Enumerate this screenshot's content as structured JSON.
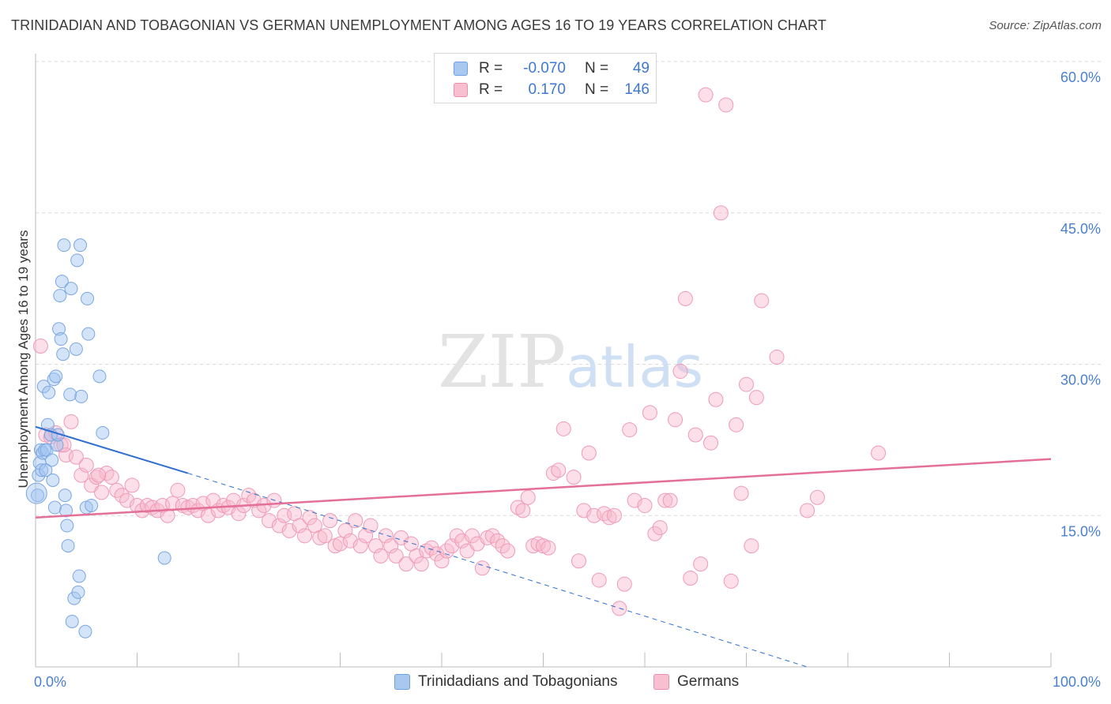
{
  "header": {
    "title": "TRINIDADIAN AND TOBAGONIAN VS GERMAN UNEMPLOYMENT AMONG AGES 16 TO 19 YEARS CORRELATION CHART",
    "source": "Source: ZipAtlas.com"
  },
  "watermark": {
    "zip": "ZIP",
    "atlas": "atlas"
  },
  "legend": {
    "rows": [
      {
        "r_label": "R =",
        "r_value": "-0.070",
        "n_label": "N =",
        "n_value": "49",
        "color": "#a9c8f0",
        "border": "#6fa0e0"
      },
      {
        "r_label": "R =",
        "r_value": "0.170",
        "n_label": "N =",
        "n_value": "146",
        "color": "#f8bfd0",
        "border": "#e890ac"
      }
    ]
  },
  "bottom_legend": {
    "series1": "Trinidadians and Tobagonians",
    "series2": "Germans"
  },
  "colors": {
    "blue_fill": "rgba(160,195,240,0.45)",
    "blue_stroke": "#7aa6e2",
    "blue_line": "#2f6fd0",
    "pink_fill": "rgba(248,185,205,0.45)",
    "pink_stroke": "#ee9ab6",
    "pink_line": "#e46f98",
    "grid": "#d9d9d9",
    "tick_text": "#4a7fd0"
  },
  "chart_data": {
    "type": "scatter",
    "title": "TRINIDADIAN AND TOBAGONIAN VS GERMAN UNEMPLOYMENT AMONG AGES 16 TO 19 YEARS CORRELATION CHART",
    "xlabel": "",
    "ylabel": "Unemployment Among Ages 16 to 19 years",
    "xlim": [
      0,
      100
    ],
    "ylim": [
      0,
      60
    ],
    "x_tick_labels": [
      "0.0%",
      "100.0%"
    ],
    "y_ticks": [
      15,
      30,
      45,
      60
    ],
    "y_tick_labels": [
      "15.0%",
      "30.0%",
      "45.0%",
      "60.0%"
    ],
    "grid": "horizontal dashed",
    "legend_position": "top-center",
    "series": [
      {
        "name": "Trinidadians and Tobagonians",
        "points": [
          [
            0.2,
            17.0
          ],
          [
            0.3,
            19.0
          ],
          [
            0.4,
            20.2
          ],
          [
            0.5,
            21.5
          ],
          [
            0.6,
            19.5
          ],
          [
            0.7,
            21.2
          ],
          [
            0.8,
            27.8
          ],
          [
            0.9,
            21.5
          ],
          [
            1.0,
            19.5
          ],
          [
            1.1,
            21.5
          ],
          [
            1.2,
            24.0
          ],
          [
            1.3,
            27.2
          ],
          [
            1.5,
            23.0
          ],
          [
            1.6,
            20.5
          ],
          [
            1.7,
            18.5
          ],
          [
            1.8,
            28.5
          ],
          [
            1.9,
            15.8
          ],
          [
            2.0,
            28.8
          ],
          [
            2.1,
            22.0
          ],
          [
            2.2,
            23.0
          ],
          [
            2.3,
            33.5
          ],
          [
            2.4,
            36.8
          ],
          [
            2.5,
            32.5
          ],
          [
            2.6,
            38.2
          ],
          [
            2.7,
            31.0
          ],
          [
            2.8,
            41.8
          ],
          [
            2.9,
            17.0
          ],
          [
            3.0,
            15.5
          ],
          [
            3.1,
            14.0
          ],
          [
            3.2,
            12.0
          ],
          [
            3.4,
            27.0
          ],
          [
            3.5,
            37.5
          ],
          [
            3.6,
            4.5
          ],
          [
            3.8,
            6.8
          ],
          [
            4.0,
            31.5
          ],
          [
            4.1,
            40.3
          ],
          [
            4.2,
            7.4
          ],
          [
            4.3,
            9.0
          ],
          [
            4.4,
            41.8
          ],
          [
            4.5,
            26.8
          ],
          [
            4.9,
            3.5
          ],
          [
            5.0,
            15.8
          ],
          [
            5.1,
            36.5
          ],
          [
            5.2,
            33.0
          ],
          [
            5.5,
            16.0
          ],
          [
            6.3,
            28.8
          ],
          [
            6.6,
            23.2
          ],
          [
            12.7,
            10.8
          ],
          [
            0.1,
            17.2
          ]
        ],
        "trend": {
          "x": [
            0,
            15
          ],
          "y": [
            23.8,
            19.2
          ],
          "dashed_extension": {
            "x": [
              15,
              76
            ],
            "y": [
              19.2,
              0.0
            ]
          }
        }
      },
      {
        "name": "Germans",
        "points": [
          [
            0.5,
            31.8
          ],
          [
            1.0,
            23.0
          ],
          [
            1.5,
            22.8
          ],
          [
            2.0,
            23.2
          ],
          [
            2.5,
            22.0
          ],
          [
            3.0,
            21.0
          ],
          [
            3.5,
            24.3
          ],
          [
            4.0,
            20.8
          ],
          [
            4.5,
            19.0
          ],
          [
            5.0,
            20.0
          ],
          [
            5.5,
            18.0
          ],
          [
            6.0,
            18.8
          ],
          [
            6.5,
            17.3
          ],
          [
            7.0,
            19.2
          ],
          [
            7.5,
            18.8
          ],
          [
            8.0,
            17.5
          ],
          [
            8.5,
            17.0
          ],
          [
            9.0,
            16.5
          ],
          [
            9.5,
            18.0
          ],
          [
            10.0,
            16.0
          ],
          [
            10.5,
            15.5
          ],
          [
            11.0,
            16.0
          ],
          [
            11.5,
            15.8
          ],
          [
            12.0,
            15.5
          ],
          [
            12.5,
            16.0
          ],
          [
            13.0,
            15.0
          ],
          [
            13.5,
            16.2
          ],
          [
            14.0,
            17.5
          ],
          [
            14.5,
            16.0
          ],
          [
            15.0,
            15.8
          ],
          [
            15.5,
            16.0
          ],
          [
            16.0,
            15.5
          ],
          [
            16.5,
            16.2
          ],
          [
            17.0,
            15.0
          ],
          [
            17.5,
            16.5
          ],
          [
            18.0,
            15.5
          ],
          [
            18.5,
            16.0
          ],
          [
            19.0,
            15.8
          ],
          [
            19.5,
            16.5
          ],
          [
            20.0,
            15.2
          ],
          [
            20.5,
            16.0
          ],
          [
            21.0,
            17.0
          ],
          [
            21.5,
            16.5
          ],
          [
            22.0,
            15.5
          ],
          [
            22.5,
            16.0
          ],
          [
            23.0,
            14.5
          ],
          [
            23.5,
            16.5
          ],
          [
            24.0,
            14.0
          ],
          [
            24.5,
            15.0
          ],
          [
            25.0,
            13.5
          ],
          [
            25.5,
            15.2
          ],
          [
            26.0,
            14.0
          ],
          [
            26.5,
            13.0
          ],
          [
            27.0,
            14.8
          ],
          [
            27.5,
            14.0
          ],
          [
            28.0,
            12.8
          ],
          [
            28.5,
            13.0
          ],
          [
            29.0,
            14.5
          ],
          [
            29.5,
            12.0
          ],
          [
            30.0,
            12.2
          ],
          [
            30.5,
            13.5
          ],
          [
            31.0,
            12.5
          ],
          [
            31.5,
            14.5
          ],
          [
            32.0,
            12.0
          ],
          [
            32.5,
            13.0
          ],
          [
            33.0,
            14.0
          ],
          [
            33.5,
            12.0
          ],
          [
            34.0,
            11.0
          ],
          [
            34.5,
            13.0
          ],
          [
            35.0,
            12.0
          ],
          [
            35.5,
            11.0
          ],
          [
            36.0,
            12.8
          ],
          [
            36.5,
            10.2
          ],
          [
            37.0,
            12.2
          ],
          [
            37.5,
            11.0
          ],
          [
            38.0,
            10.2
          ],
          [
            38.5,
            11.5
          ],
          [
            39.0,
            11.8
          ],
          [
            39.5,
            11.2
          ],
          [
            40.0,
            10.5
          ],
          [
            40.5,
            11.5
          ],
          [
            41.0,
            12.0
          ],
          [
            41.5,
            13.0
          ],
          [
            42.0,
            12.5
          ],
          [
            42.5,
            11.5
          ],
          [
            43.0,
            13.0
          ],
          [
            43.5,
            12.2
          ],
          [
            44.0,
            9.8
          ],
          [
            44.5,
            12.8
          ],
          [
            45.0,
            13.0
          ],
          [
            45.5,
            12.5
          ],
          [
            46.0,
            12.0
          ],
          [
            46.5,
            11.5
          ],
          [
            47.5,
            15.8
          ],
          [
            48.0,
            15.5
          ],
          [
            48.5,
            16.8
          ],
          [
            49.0,
            12.0
          ],
          [
            49.5,
            12.2
          ],
          [
            50.0,
            12.0
          ],
          [
            50.5,
            11.8
          ],
          [
            51.0,
            19.2
          ],
          [
            51.5,
            19.5
          ],
          [
            52.0,
            23.6
          ],
          [
            53.0,
            18.8
          ],
          [
            53.5,
            10.5
          ],
          [
            54.0,
            15.5
          ],
          [
            54.5,
            21.2
          ],
          [
            55.0,
            15.0
          ],
          [
            55.5,
            8.6
          ],
          [
            56.0,
            15.2
          ],
          [
            56.5,
            14.8
          ],
          [
            57.0,
            15.0
          ],
          [
            57.5,
            5.8
          ],
          [
            58.0,
            8.2
          ],
          [
            58.5,
            23.5
          ],
          [
            59.0,
            16.5
          ],
          [
            60.0,
            16.0
          ],
          [
            60.5,
            25.2
          ],
          [
            61.0,
            13.2
          ],
          [
            61.5,
            13.8
          ],
          [
            62.0,
            16.5
          ],
          [
            62.5,
            16.5
          ],
          [
            63.0,
            24.5
          ],
          [
            63.5,
            29.3
          ],
          [
            64.0,
            36.5
          ],
          [
            64.5,
            8.8
          ],
          [
            65.0,
            23.0
          ],
          [
            65.5,
            10.2
          ],
          [
            66.0,
            56.7
          ],
          [
            66.5,
            22.2
          ],
          [
            67.0,
            26.5
          ],
          [
            67.5,
            45.0
          ],
          [
            68.0,
            55.7
          ],
          [
            68.5,
            8.5
          ],
          [
            69.0,
            24.0
          ],
          [
            69.5,
            17.2
          ],
          [
            70.0,
            28.0
          ],
          [
            70.5,
            12.0
          ],
          [
            71.0,
            26.7
          ],
          [
            71.5,
            36.3
          ],
          [
            73.0,
            30.7
          ],
          [
            76.0,
            15.5
          ],
          [
            77.0,
            16.8
          ],
          [
            83.0,
            21.2
          ],
          [
            2.8,
            22.0
          ],
          [
            6.2,
            19.0
          ]
        ],
        "trend": {
          "x": [
            0,
            100
          ],
          "y": [
            14.8,
            20.6
          ]
        }
      }
    ]
  }
}
